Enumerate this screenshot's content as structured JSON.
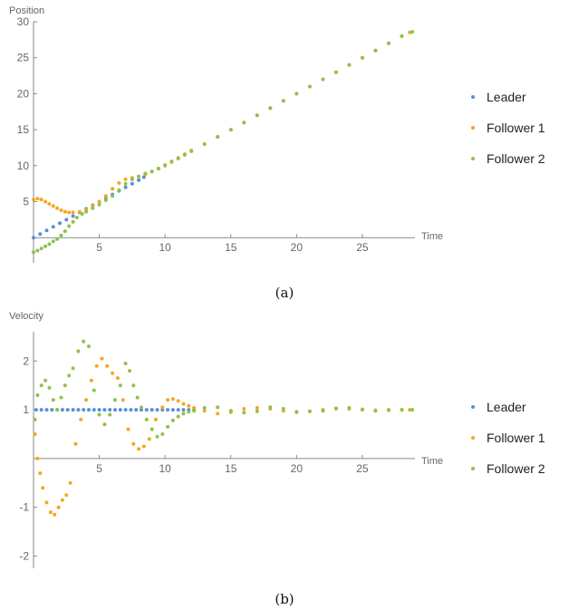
{
  "colors": {
    "leader": "#5b8fd6",
    "follower1": "#f5a623",
    "follower2": "#8fc24a",
    "axis": "#8a8a8a"
  },
  "chart_data": [
    {
      "type": "scatter",
      "caption": "(a)",
      "ylabel": "Position",
      "xlabel": "Time",
      "xlim": [
        0,
        29
      ],
      "ylim": [
        -3.5,
        30
      ],
      "xticks": [
        5,
        10,
        15,
        20,
        25
      ],
      "yticks": [
        5,
        10,
        15,
        20,
        25,
        30
      ],
      "legend_position": "right",
      "series": [
        {
          "name": "Leader",
          "color": "#5b8fd6",
          "points": [
            [
              0,
              0
            ],
            [
              0.5,
              0.5
            ],
            [
              1,
              1
            ],
            [
              1.5,
              1.5
            ],
            [
              2,
              2
            ],
            [
              2.5,
              2.5
            ],
            [
              3,
              3
            ],
            [
              3.5,
              3.5
            ],
            [
              4,
              4
            ],
            [
              4.5,
              4.5
            ],
            [
              5,
              5
            ],
            [
              5.5,
              5.5
            ],
            [
              6,
              6
            ],
            [
              6.5,
              6.5
            ],
            [
              7,
              7
            ],
            [
              7.5,
              7.5
            ],
            [
              8,
              8
            ],
            [
              8.4,
              8.4
            ]
          ]
        },
        {
          "name": "Follower 1",
          "color": "#f5a623",
          "points": [
            [
              0,
              5.3
            ],
            [
              0.3,
              5.4
            ],
            [
              0.6,
              5.3
            ],
            [
              0.9,
              5
            ],
            [
              1.2,
              4.7
            ],
            [
              1.5,
              4.4
            ],
            [
              1.8,
              4.1
            ],
            [
              2.1,
              3.8
            ],
            [
              2.4,
              3.6
            ],
            [
              2.7,
              3.5
            ],
            [
              3,
              3.5
            ],
            [
              3.5,
              3.6
            ],
            [
              4,
              3.9
            ],
            [
              4.5,
              4.4
            ],
            [
              5,
              5
            ],
            [
              5.5,
              5.8
            ],
            [
              6,
              6.8
            ],
            [
              6.5,
              7.6
            ],
            [
              7,
              8.1
            ],
            [
              7.5,
              8.3
            ],
            [
              8,
              8.5
            ],
            [
              8.5,
              8.8
            ],
            [
              9,
              9.2
            ],
            [
              9.5,
              9.6
            ],
            [
              10,
              10.1
            ],
            [
              10.5,
              10.6
            ],
            [
              11,
              11.1
            ],
            [
              11.5,
              11.6
            ],
            [
              12,
              12.1
            ],
            [
              13,
              13
            ],
            [
              14,
              14
            ],
            [
              15,
              15
            ],
            [
              16,
              16
            ],
            [
              17,
              17
            ],
            [
              18,
              18
            ],
            [
              19,
              19
            ],
            [
              20,
              20
            ],
            [
              21,
              21
            ],
            [
              22,
              22
            ],
            [
              23,
              23
            ],
            [
              24,
              24
            ],
            [
              25,
              25
            ],
            [
              26,
              26
            ],
            [
              27,
              27
            ],
            [
              28,
              28
            ],
            [
              28.6,
              28.5
            ]
          ]
        },
        {
          "name": "Follower 2",
          "color": "#8fc24a",
          "points": [
            [
              0,
              -2
            ],
            [
              0.3,
              -1.8
            ],
            [
              0.6,
              -1.5
            ],
            [
              0.9,
              -1.2
            ],
            [
              1.2,
              -0.9
            ],
            [
              1.5,
              -0.5
            ],
            [
              1.8,
              -0.2
            ],
            [
              2.1,
              0.3
            ],
            [
              2.4,
              0.9
            ],
            [
              2.7,
              1.6
            ],
            [
              3,
              2.2
            ],
            [
              3.3,
              2.8
            ],
            [
              3.7,
              3.3
            ],
            [
              4,
              3.6
            ],
            [
              4.5,
              4.1
            ],
            [
              5,
              4.6
            ],
            [
              5.5,
              5.2
            ],
            [
              6,
              5.8
            ],
            [
              6.5,
              6.6
            ],
            [
              7,
              7.5
            ],
            [
              7.5,
              8.1
            ],
            [
              8,
              8.5
            ],
            [
              8.5,
              8.9
            ],
            [
              9,
              9.2
            ],
            [
              9.5,
              9.6
            ],
            [
              10,
              10
            ],
            [
              10.5,
              10.5
            ],
            [
              11,
              11
            ],
            [
              11.5,
              11.5
            ],
            [
              12,
              12
            ],
            [
              13,
              13
            ],
            [
              14,
              14
            ],
            [
              15,
              15
            ],
            [
              16,
              16
            ],
            [
              17,
              17
            ],
            [
              18,
              18
            ],
            [
              19,
              19
            ],
            [
              20,
              20
            ],
            [
              21,
              21
            ],
            [
              22,
              22
            ],
            [
              23,
              23
            ],
            [
              24,
              24
            ],
            [
              25,
              25
            ],
            [
              26,
              26
            ],
            [
              27,
              27
            ],
            [
              28,
              28
            ],
            [
              28.8,
              28.6
            ]
          ]
        }
      ]
    },
    {
      "type": "scatter",
      "caption": "(b)",
      "ylabel": "Velocity",
      "xlabel": "Time",
      "xlim": [
        0,
        29
      ],
      "ylim": [
        -2.25,
        2.6
      ],
      "xticks": [
        5,
        10,
        15,
        20,
        25
      ],
      "yticks": [
        -2,
        -1,
        1,
        2
      ],
      "legend_position": "right",
      "series": [
        {
          "name": "Leader",
          "color": "#5b8fd6",
          "points": [
            [
              0.2,
              1
            ],
            [
              0.6,
              1
            ],
            [
              1,
              1
            ],
            [
              1.4,
              1
            ],
            [
              1.8,
              1
            ],
            [
              2.2,
              1
            ],
            [
              2.6,
              1
            ],
            [
              3,
              1
            ],
            [
              3.4,
              1
            ],
            [
              3.8,
              1
            ],
            [
              4.2,
              1
            ],
            [
              4.6,
              1
            ],
            [
              5,
              1
            ],
            [
              5.4,
              1
            ],
            [
              5.8,
              1
            ],
            [
              6.2,
              1
            ],
            [
              6.6,
              1
            ],
            [
              7,
              1
            ],
            [
              7.4,
              1
            ],
            [
              7.8,
              1
            ],
            [
              8.2,
              1
            ],
            [
              8.6,
              1
            ],
            [
              9,
              1
            ],
            [
              9.4,
              1
            ],
            [
              9.8,
              1
            ],
            [
              10.2,
              1
            ],
            [
              10.6,
              1
            ],
            [
              11,
              1
            ],
            [
              11.4,
              1
            ],
            [
              11.8,
              1
            ],
            [
              12.2,
              1
            ]
          ]
        },
        {
          "name": "Follower 1",
          "color": "#f5a623",
          "points": [
            [
              0.1,
              0.5
            ],
            [
              0.3,
              0
            ],
            [
              0.5,
              -0.3
            ],
            [
              0.7,
              -0.6
            ],
            [
              1,
              -0.9
            ],
            [
              1.3,
              -1.1
            ],
            [
              1.6,
              -1.15
            ],
            [
              1.9,
              -1
            ],
            [
              2.2,
              -0.85
            ],
            [
              2.5,
              -0.75
            ],
            [
              2.8,
              -0.5
            ],
            [
              3.2,
              0.3
            ],
            [
              3.6,
              0.8
            ],
            [
              4,
              1.2
            ],
            [
              4.4,
              1.6
            ],
            [
              4.8,
              1.9
            ],
            [
              5.2,
              2.05
            ],
            [
              5.6,
              1.9
            ],
            [
              6,
              1.75
            ],
            [
              6.4,
              1.65
            ],
            [
              6.8,
              1.2
            ],
            [
              7.2,
              0.6
            ],
            [
              7.6,
              0.3
            ],
            [
              8,
              0.2
            ],
            [
              8.4,
              0.25
            ],
            [
              8.8,
              0.4
            ],
            [
              9.3,
              0.8
            ],
            [
              9.8,
              1.05
            ],
            [
              10.2,
              1.2
            ],
            [
              10.6,
              1.22
            ],
            [
              11,
              1.18
            ],
            [
              11.4,
              1.12
            ],
            [
              11.8,
              1.08
            ],
            [
              12.2,
              1.04
            ],
            [
              13,
              0.98
            ],
            [
              14,
              0.92
            ],
            [
              15,
              0.95
            ],
            [
              16,
              1.02
            ],
            [
              17,
              1.04
            ],
            [
              18,
              1.02
            ],
            [
              19,
              0.98
            ],
            [
              20,
              0.96
            ],
            [
              21,
              0.97
            ],
            [
              22,
              1
            ],
            [
              23,
              1.03
            ],
            [
              24,
              1.02
            ],
            [
              25,
              1
            ],
            [
              26,
              0.99
            ],
            [
              27,
              1
            ],
            [
              28,
              1
            ],
            [
              28.6,
              1
            ]
          ]
        },
        {
          "name": "Follower 2",
          "color": "#8fc24a",
          "points": [
            [
              0.1,
              0.8
            ],
            [
              0.3,
              1.3
            ],
            [
              0.6,
              1.5
            ],
            [
              0.9,
              1.6
            ],
            [
              1.2,
              1.45
            ],
            [
              1.5,
              1.2
            ],
            [
              1.8,
              1.0
            ],
            [
              2.1,
              1.25
            ],
            [
              2.4,
              1.5
            ],
            [
              2.7,
              1.7
            ],
            [
              3,
              1.85
            ],
            [
              3.4,
              2.2
            ],
            [
              3.8,
              2.4
            ],
            [
              4.2,
              2.3
            ],
            [
              4.6,
              1.4
            ],
            [
              5,
              0.9
            ],
            [
              5.4,
              0.7
            ],
            [
              5.8,
              0.9
            ],
            [
              6.2,
              1.2
            ],
            [
              6.6,
              1.5
            ],
            [
              7,
              1.95
            ],
            [
              7.3,
              1.8
            ],
            [
              7.6,
              1.5
            ],
            [
              7.9,
              1.25
            ],
            [
              8.2,
              1.05
            ],
            [
              8.6,
              0.8
            ],
            [
              9,
              0.6
            ],
            [
              9.4,
              0.45
            ],
            [
              9.8,
              0.5
            ],
            [
              10.2,
              0.65
            ],
            [
              10.6,
              0.78
            ],
            [
              11,
              0.86
            ],
            [
              11.4,
              0.92
            ],
            [
              11.8,
              0.96
            ],
            [
              12.2,
              0.98
            ],
            [
              13,
              1.04
            ],
            [
              14,
              1.05
            ],
            [
              15,
              0.98
            ],
            [
              16,
              0.94
            ],
            [
              17,
              0.97
            ],
            [
              18,
              1.05
            ],
            [
              19,
              1.02
            ],
            [
              20,
              0.95
            ],
            [
              21,
              0.97
            ],
            [
              22,
              0.98
            ],
            [
              23,
              1.02
            ],
            [
              24,
              1.04
            ],
            [
              25,
              1.01
            ],
            [
              26,
              0.98
            ],
            [
              27,
              0.99
            ],
            [
              28,
              1
            ],
            [
              28.8,
              1
            ]
          ]
        }
      ]
    }
  ]
}
